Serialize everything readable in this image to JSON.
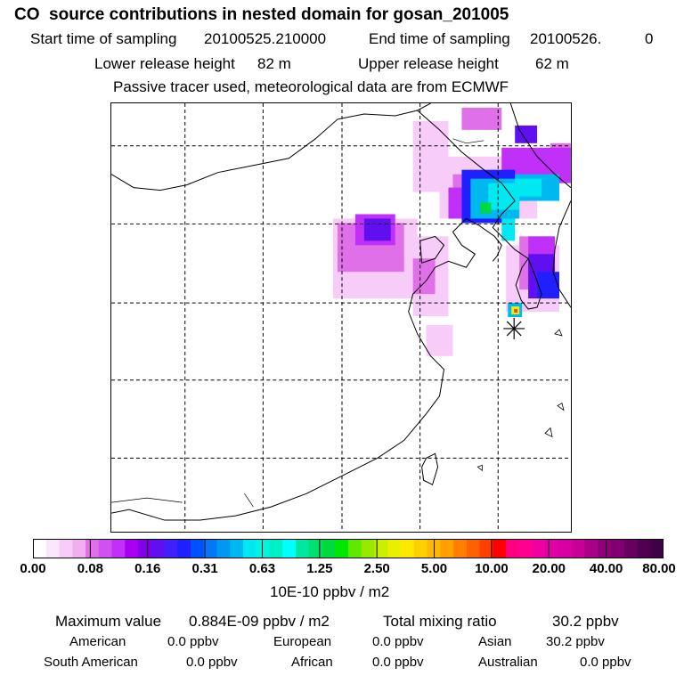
{
  "header": {
    "title": "CO  source contributions in nested domain for gosan_201005",
    "start_label": "Start time of sampling",
    "start_value": "20100525.210000",
    "end_label": "End time of sampling",
    "end_value": "20100526.",
    "end_value2": "0",
    "lower_label": "Lower release height",
    "lower_value": "82 m",
    "upper_label": "Upper release height",
    "upper_value": "62 m",
    "note": "Passive tracer used, meteorological data are from ECMWF"
  },
  "colorbar": {
    "units": "10E-10 ppbv / m2",
    "tick_labels": [
      "0.00",
      "0.08",
      "0.16",
      "0.31",
      "0.63",
      "1.25",
      "2.50",
      "5.00",
      "10.00",
      "20.00",
      "40.00",
      "80.00"
    ],
    "colors": [
      "#ffffff",
      "#fce6fc",
      "#f8ccf8",
      "#f0b0f0",
      "#e070e8",
      "#d050f0",
      "#c030f8",
      "#a800f0",
      "#8000e8",
      "#6010f0",
      "#4020f8",
      "#2020ff",
      "#0050ff",
      "#0078f8",
      "#0098f0",
      "#00b8f0",
      "#00e8f0",
      "#00f4e0",
      "#00f0c8",
      "#00ffff",
      "#00e8a0",
      "#00e070",
      "#00d840",
      "#00e800",
      "#60e800",
      "#98e800",
      "#c8f000",
      "#e8f000",
      "#ffe800",
      "#ffd000",
      "#ffb800",
      "#ffa000",
      "#ff8000",
      "#ff6000",
      "#ff4000",
      "#ff0000",
      "#ff0080",
      "#ff0090",
      "#f000a0",
      "#e000a8",
      "#d800a0",
      "#c80098",
      "#a80088",
      "#900078",
      "#800070",
      "#680060",
      "#500050",
      "#400048"
    ]
  },
  "summary": {
    "max_label": "Maximum value",
    "max_value": "0.884E-09 ppbv / m2",
    "total_label": "Total mixing ratio",
    "total_value": "30.2 ppbv",
    "regions": [
      {
        "name": "American",
        "value": "0.0 ppbv"
      },
      {
        "name": "European",
        "value": "0.0 ppbv"
      },
      {
        "name": "Asian",
        "value": "30.2 ppbv"
      },
      {
        "name": "South American",
        "value": "0.0 ppbv"
      },
      {
        "name": "African",
        "value": "0.0 ppbv"
      },
      {
        "name": "Australian",
        "value": "0.0 ppbv"
      }
    ]
  }
}
